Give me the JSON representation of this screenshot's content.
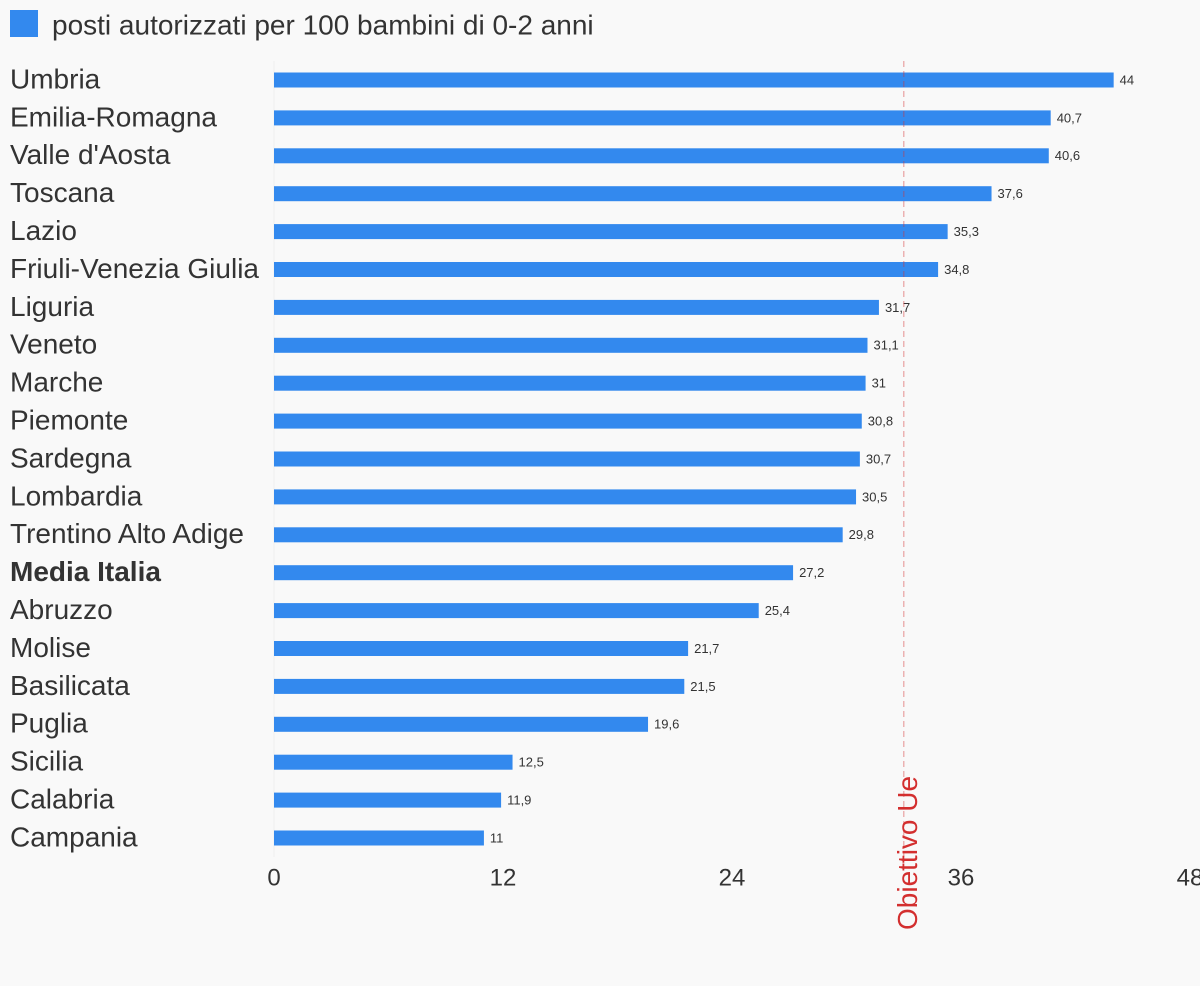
{
  "chart_data": {
    "type": "bar",
    "orientation": "horizontal",
    "legend": "posti autorizzati per 100 bambini di 0-2 anni",
    "color": "#3389ee",
    "categories": [
      "Umbria",
      "Emilia-Romagna",
      "Valle d'Aosta",
      "Toscana",
      "Lazio",
      "Friuli-Venezia Giulia",
      "Liguria",
      "Veneto",
      "Marche",
      "Piemonte",
      "Sardegna",
      "Lombardia",
      "Trentino Alto Adige",
      "Media Italia",
      "Abruzzo",
      "Molise",
      "Basilicata",
      "Puglia",
      "Sicilia",
      "Calabria",
      "Campania"
    ],
    "values": [
      44,
      40.7,
      40.6,
      37.6,
      35.3,
      34.8,
      31.7,
      31.1,
      31,
      30.8,
      30.7,
      30.5,
      29.8,
      27.2,
      25.4,
      21.7,
      21.5,
      19.6,
      12.5,
      11.9,
      11
    ],
    "value_labels": [
      "44",
      "40,7",
      "40,6",
      "37,6",
      "35,3",
      "34,8",
      "31,7",
      "31,1",
      "31",
      "30,8",
      "30,7",
      "30,5",
      "29,8",
      "27,2",
      "25,4",
      "21,7",
      "21,5",
      "19,6",
      "12,5",
      "11,9",
      "11"
    ],
    "bold_category_index": 13,
    "xlim": [
      0,
      48
    ],
    "xticks": [
      0,
      12,
      24,
      36,
      48
    ],
    "reference_line": {
      "value": 33,
      "label": "Obiettivo Ue",
      "color": "#d32f2f"
    }
  }
}
